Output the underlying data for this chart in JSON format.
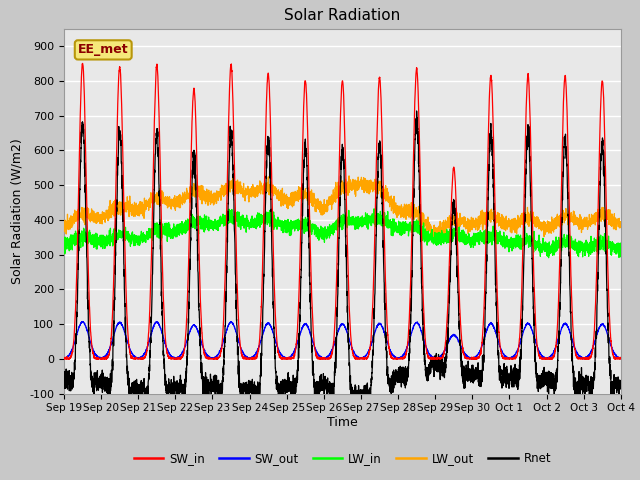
{
  "title": "Solar Radiation",
  "xlabel": "Time",
  "ylabel": "Solar Radiation (W/m2)",
  "ylim": [
    -100,
    950
  ],
  "yticks": [
    -100,
    0,
    100,
    200,
    300,
    400,
    500,
    600,
    700,
    800,
    900
  ],
  "fig_bg_color": "#c8c8c8",
  "plot_bg_color": "#e8e8e8",
  "grid_color": "white",
  "legend_labels": [
    "SW_in",
    "SW_out",
    "LW_in",
    "LW_out",
    "Rnet"
  ],
  "legend_colors": [
    "red",
    "blue",
    "#00dd00",
    "orange",
    "black"
  ],
  "watermark_text": "EE_met",
  "watermark_bg": "#f5e87a",
  "watermark_border": "#b8960a",
  "n_days": 15,
  "start_day": 19,
  "points_per_day": 288,
  "sw_peaks": [
    850,
    840,
    845,
    775,
    845,
    820,
    800,
    800,
    810,
    835,
    550,
    815,
    815,
    815,
    800
  ],
  "lw_in_base": [
    330,
    335,
    340,
    365,
    385,
    390,
    380,
    355,
    395,
    375,
    340,
    340,
    330,
    315,
    315
  ],
  "lw_out_base": [
    380,
    400,
    425,
    445,
    460,
    475,
    455,
    430,
    500,
    425,
    355,
    385,
    380,
    375,
    385
  ]
}
